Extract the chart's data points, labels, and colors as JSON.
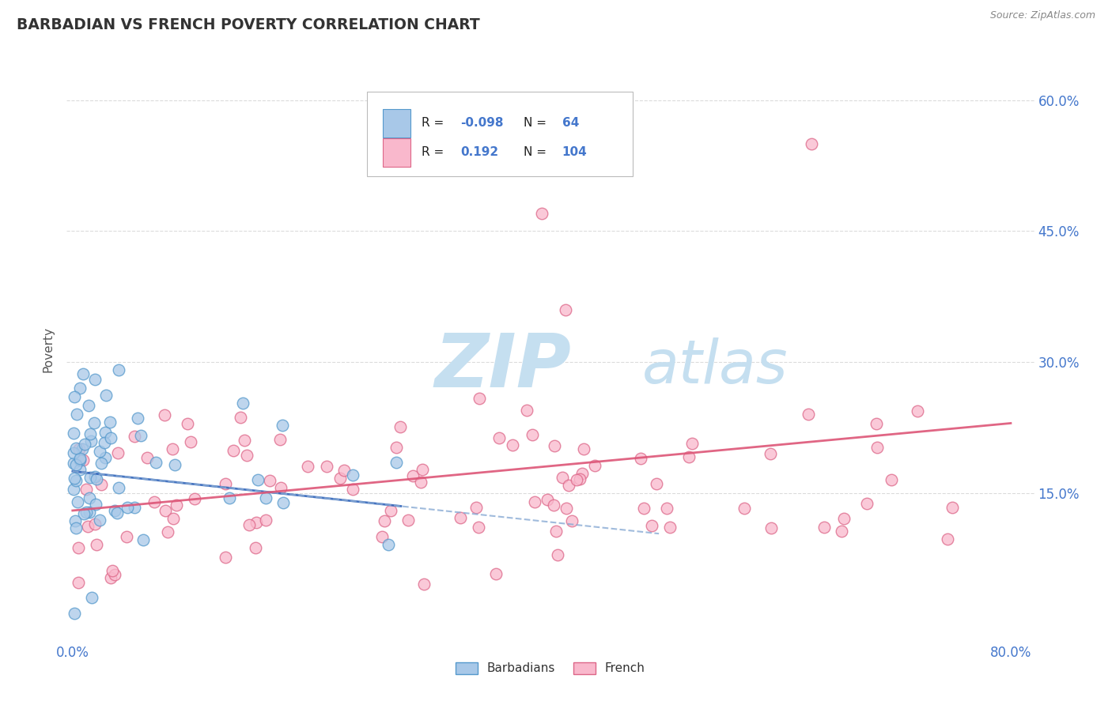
{
  "title": "BARBADIAN VS FRENCH POVERTY CORRELATION CHART",
  "source": "Source: ZipAtlas.com",
  "ylabel": "Poverty",
  "xlim": [
    -0.005,
    0.82
  ],
  "ylim": [
    -0.02,
    0.65
  ],
  "xtick_positions": [
    0.0,
    0.1,
    0.2,
    0.3,
    0.4,
    0.5,
    0.6,
    0.7,
    0.8
  ],
  "xticklabels": [
    "0.0%",
    "",
    "",
    "",
    "",
    "",
    "",
    "",
    "80.0%"
  ],
  "ytick_right_values": [
    0.15,
    0.3,
    0.45,
    0.6
  ],
  "ytick_right_labels": [
    "15.0%",
    "30.0%",
    "45.0%",
    "60.0%"
  ],
  "barbadian_color": "#a8c8e8",
  "barbadian_edge": "#5599cc",
  "french_color": "#f9b8cc",
  "french_edge": "#dd6688",
  "trendline_barb_color": "#3366bb",
  "trendline_barb_dash_color": "#88aad4",
  "trendline_french_color": "#dd5577",
  "watermark_zip_color": "#c5dff0",
  "watermark_atlas_color": "#c5dff0",
  "grid_color": "#cccccc",
  "title_color": "#333333",
  "right_label_color": "#4477cc",
  "legend_text_color": "#222222",
  "legend_value_color": "#4477cc",
  "source_color": "#888888"
}
